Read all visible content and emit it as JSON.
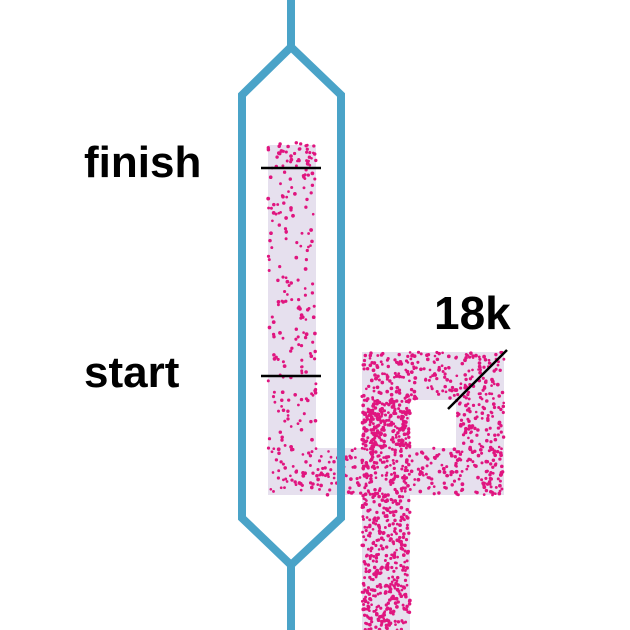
{
  "labels": {
    "finish": "finish",
    "start": "start",
    "count": "18k"
  },
  "colors": {
    "tube": "#4aa3c8",
    "channel": "#e6e0ee",
    "dots": "#e0157f",
    "marker": "#000000",
    "text": "#000000"
  }
}
